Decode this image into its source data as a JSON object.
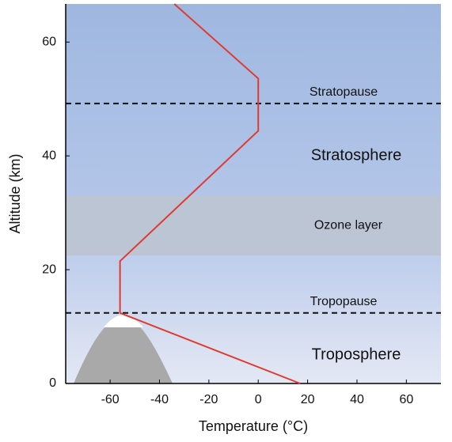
{
  "chart_data": {
    "type": "line",
    "xlabel": "Temperature (°C)",
    "ylabel": "Altitude (km)",
    "series": [
      {
        "color": "#e03a2f",
        "x": [
          17,
          -56,
          -56,
          0,
          0,
          -34
        ],
        "y": [
          0,
          12.4,
          21.5,
          44.4,
          53.6,
          66.7
        ]
      }
    ],
    "xlim": [
      -78,
      74
    ],
    "ylim": [
      0,
      66.7
    ],
    "xticks": [
      -60,
      -40,
      -20,
      0,
      20,
      40,
      60
    ],
    "yticks": [
      0,
      20,
      40,
      60
    ],
    "grid": false,
    "hlines": [
      {
        "label": "Stratopause",
        "y": 49.2
      },
      {
        "label": "Tropopause",
        "y": 12.4
      }
    ],
    "bands": [
      {
        "label": "Ozone layer",
        "y": [
          22.5,
          33
        ]
      }
    ],
    "annotations": [
      "Stratosphere",
      "Troposphere"
    ]
  }
}
